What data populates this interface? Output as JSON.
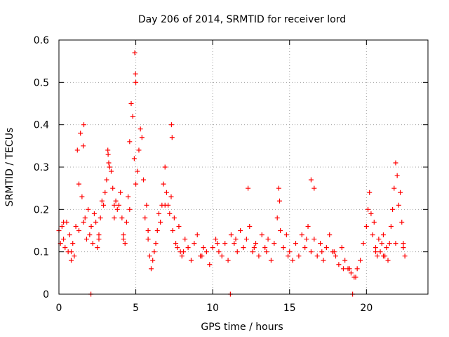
{
  "chart_data": {
    "type": "scatter",
    "title": "Day 206 of 2014, SRMTID for receiver lord",
    "xlabel": "GPS time / hours",
    "ylabel": "SRMTID / TECUs",
    "xlim": [
      0,
      24
    ],
    "ylim": [
      0,
      0.6
    ],
    "xticks": [
      {
        "value": 0,
        "label": "0"
      },
      {
        "value": 5,
        "label": "5"
      },
      {
        "value": 10,
        "label": "10"
      },
      {
        "value": 15,
        "label": "15"
      },
      {
        "value": 20,
        "label": "20"
      }
    ],
    "yticks": [
      {
        "value": 0,
        "label": "0"
      },
      {
        "value": 0.1,
        "label": "0.1"
      },
      {
        "value": 0.2,
        "label": "0.2"
      },
      {
        "value": 0.3,
        "label": "0.3"
      },
      {
        "value": 0.4,
        "label": "0.4"
      },
      {
        "value": 0.5,
        "label": "0.5"
      },
      {
        "value": 0.6,
        "label": "0.6"
      }
    ],
    "grid": true,
    "marker": "+",
    "color": "#ff0000",
    "series": [
      {
        "name": "SRMTID",
        "x": [
          0.0,
          0.1,
          0.2,
          0.3,
          0.4,
          0.5,
          0.6,
          0.7,
          0.8,
          0.9,
          1.0,
          1.1,
          1.2,
          1.3,
          1.4,
          1.5,
          1.6,
          1.7,
          1.8,
          1.9,
          2.0,
          2.1,
          2.2,
          2.3,
          2.4,
          2.5,
          2.6,
          2.7,
          2.8,
          2.9,
          3.0,
          3.1,
          3.2,
          3.3,
          3.4,
          3.5,
          3.6,
          3.7,
          3.8,
          3.9,
          4.0,
          4.1,
          4.2,
          4.3,
          4.4,
          4.5,
          4.6,
          4.7,
          4.8,
          4.9,
          5.0,
          5.1,
          5.2,
          5.3,
          5.4,
          5.5,
          5.6,
          5.7,
          5.8,
          5.9,
          6.0,
          6.1,
          6.2,
          6.3,
          6.4,
          6.5,
          6.6,
          6.7,
          6.8,
          6.9,
          7.0,
          7.1,
          7.2,
          7.3,
          7.4,
          7.5,
          7.6,
          7.7,
          7.8,
          7.9,
          8.0,
          8.2,
          8.4,
          8.6,
          8.8,
          9.0,
          9.2,
          9.4,
          9.6,
          9.8,
          10.0,
          10.2,
          10.4,
          10.6,
          10.8,
          11.0,
          11.2,
          11.4,
          11.6,
          11.8,
          12.0,
          12.2,
          12.4,
          12.6,
          12.8,
          13.0,
          13.2,
          13.4,
          13.6,
          13.8,
          14.0,
          14.2,
          14.4,
          14.6,
          14.8,
          15.0,
          15.2,
          15.4,
          15.6,
          15.8,
          16.0,
          16.2,
          16.4,
          16.6,
          16.8,
          17.0,
          17.2,
          17.4,
          17.6,
          17.8,
          18.0,
          18.2,
          18.4,
          18.6,
          18.8,
          19.0,
          19.2,
          19.4,
          19.6,
          19.8,
          20.0,
          20.1,
          20.2,
          20.3,
          20.4,
          20.5,
          20.6,
          20.7,
          20.8,
          20.9,
          21.0,
          21.1,
          21.2,
          21.3,
          21.4,
          21.5,
          21.6,
          21.7,
          21.8,
          21.9,
          22.0,
          22.1,
          22.2,
          22.3,
          22.4,
          22.5,
          1.62,
          1.58,
          3.18,
          3.24,
          4.93,
          4.98,
          5.0,
          7.32,
          7.36,
          12.3,
          14.3,
          14.35,
          16.4,
          16.6,
          2.08,
          11.15,
          19.1,
          0.3,
          0.8,
          1.3,
          2.6,
          3.6,
          4.2,
          4.6,
          5.8,
          6.9,
          8.1,
          9.3,
          10.3,
          11.5,
          12.7,
          13.5,
          14.9,
          16.1,
          17.1,
          17.9,
          18.5,
          18.9,
          19.3,
          20.6,
          21.1,
          21.9,
          22.4
        ],
        "y": [
          0.15,
          0.12,
          0.16,
          0.13,
          0.11,
          0.17,
          0.1,
          0.14,
          0.08,
          0.12,
          0.09,
          0.16,
          0.34,
          0.26,
          0.38,
          0.23,
          0.17,
          0.18,
          0.13,
          0.2,
          0.14,
          0.16,
          0.12,
          0.19,
          0.17,
          0.11,
          0.14,
          0.18,
          0.22,
          0.21,
          0.24,
          0.27,
          0.33,
          0.3,
          0.29,
          0.25,
          0.18,
          0.22,
          0.2,
          0.21,
          0.24,
          0.18,
          0.14,
          0.12,
          0.17,
          0.23,
          0.36,
          0.45,
          0.42,
          0.32,
          0.26,
          0.29,
          0.34,
          0.39,
          0.37,
          0.27,
          0.18,
          0.21,
          0.13,
          0.09,
          0.06,
          0.08,
          0.1,
          0.12,
          0.15,
          0.19,
          0.17,
          0.21,
          0.26,
          0.3,
          0.24,
          0.21,
          0.19,
          0.23,
          0.15,
          0.18,
          0.12,
          0.11,
          0.16,
          0.1,
          0.09,
          0.13,
          0.11,
          0.08,
          0.12,
          0.14,
          0.09,
          0.11,
          0.1,
          0.07,
          0.11,
          0.13,
          0.1,
          0.09,
          0.12,
          0.08,
          0.14,
          0.12,
          0.1,
          0.15,
          0.11,
          0.13,
          0.16,
          0.1,
          0.12,
          0.09,
          0.14,
          0.11,
          0.13,
          0.08,
          0.12,
          0.18,
          0.15,
          0.11,
          0.14,
          0.1,
          0.08,
          0.12,
          0.09,
          0.14,
          0.11,
          0.16,
          0.1,
          0.13,
          0.09,
          0.12,
          0.08,
          0.11,
          0.14,
          0.1,
          0.09,
          0.07,
          0.11,
          0.08,
          0.06,
          0.05,
          0.04,
          0.06,
          0.08,
          0.12,
          0.16,
          0.2,
          0.24,
          0.19,
          0.14,
          0.17,
          0.11,
          0.09,
          0.13,
          0.1,
          0.12,
          0.14,
          0.09,
          0.11,
          0.08,
          0.12,
          0.16,
          0.2,
          0.25,
          0.31,
          0.28,
          0.21,
          0.24,
          0.17,
          0.12,
          0.09,
          0.4,
          0.35,
          0.34,
          0.31,
          0.57,
          0.52,
          0.5,
          0.4,
          0.37,
          0.25,
          0.25,
          0.22,
          0.27,
          0.25,
          0.0,
          0.0,
          0.0,
          0.17,
          0.1,
          0.15,
          0.13,
          0.21,
          0.13,
          0.2,
          0.15,
          0.21,
          0.1,
          0.09,
          0.12,
          0.13,
          0.11,
          0.1,
          0.09,
          0.13,
          0.1,
          0.1,
          0.06,
          0.06,
          0.04,
          0.1,
          0.09,
          0.12,
          0.11
        ]
      }
    ]
  }
}
